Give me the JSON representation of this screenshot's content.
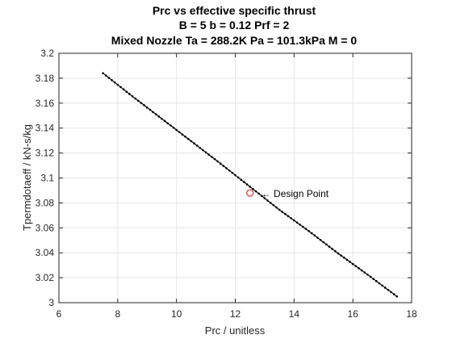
{
  "chart_data": {
    "type": "line",
    "title": [
      "Prc vs effective specific thrust",
      "B = 5 b = 0.12 Prf = 2",
      "Mixed Nozzle Ta = 288.2K Pa = 101.3kPa M = 0"
    ],
    "xlabel": "Prc / unitless",
    "ylabel": "Tpermdotaeff / kN-s/kg",
    "xlim": [
      6,
      18
    ],
    "ylim": [
      3,
      3.2
    ],
    "xticks": [
      6,
      8,
      10,
      12,
      14,
      16,
      18
    ],
    "xtick_labels": [
      "6",
      "8",
      "10",
      "12",
      "14",
      "16",
      "18"
    ],
    "yticks": [
      3,
      3.02,
      3.04,
      3.06,
      3.08,
      3.1,
      3.12,
      3.14,
      3.16,
      3.18,
      3.2
    ],
    "ytick_labels": [
      "3",
      "3.02",
      "3.04",
      "3.06",
      "3.08",
      "3.1",
      "3.12",
      "3.14",
      "3.16",
      "3.18",
      "3.2"
    ],
    "grid": true,
    "series": [
      {
        "color": "#000000",
        "marker": "dot",
        "x": [
          7.5,
          8.5,
          9.5,
          10.5,
          11.5,
          12.5,
          13.5,
          14.5,
          15.5,
          16.5,
          17.5
        ],
        "y": [
          3.184,
          3.1655,
          3.1475,
          3.1295,
          3.1115,
          3.093,
          3.0745,
          3.0575,
          3.0395,
          3.0225,
          3.005
        ]
      }
    ],
    "annotations": [
      {
        "x": 12.5,
        "y": 3.088,
        "marker": "circle",
        "color": "#e8232c",
        "text": "← Design Point"
      }
    ]
  }
}
